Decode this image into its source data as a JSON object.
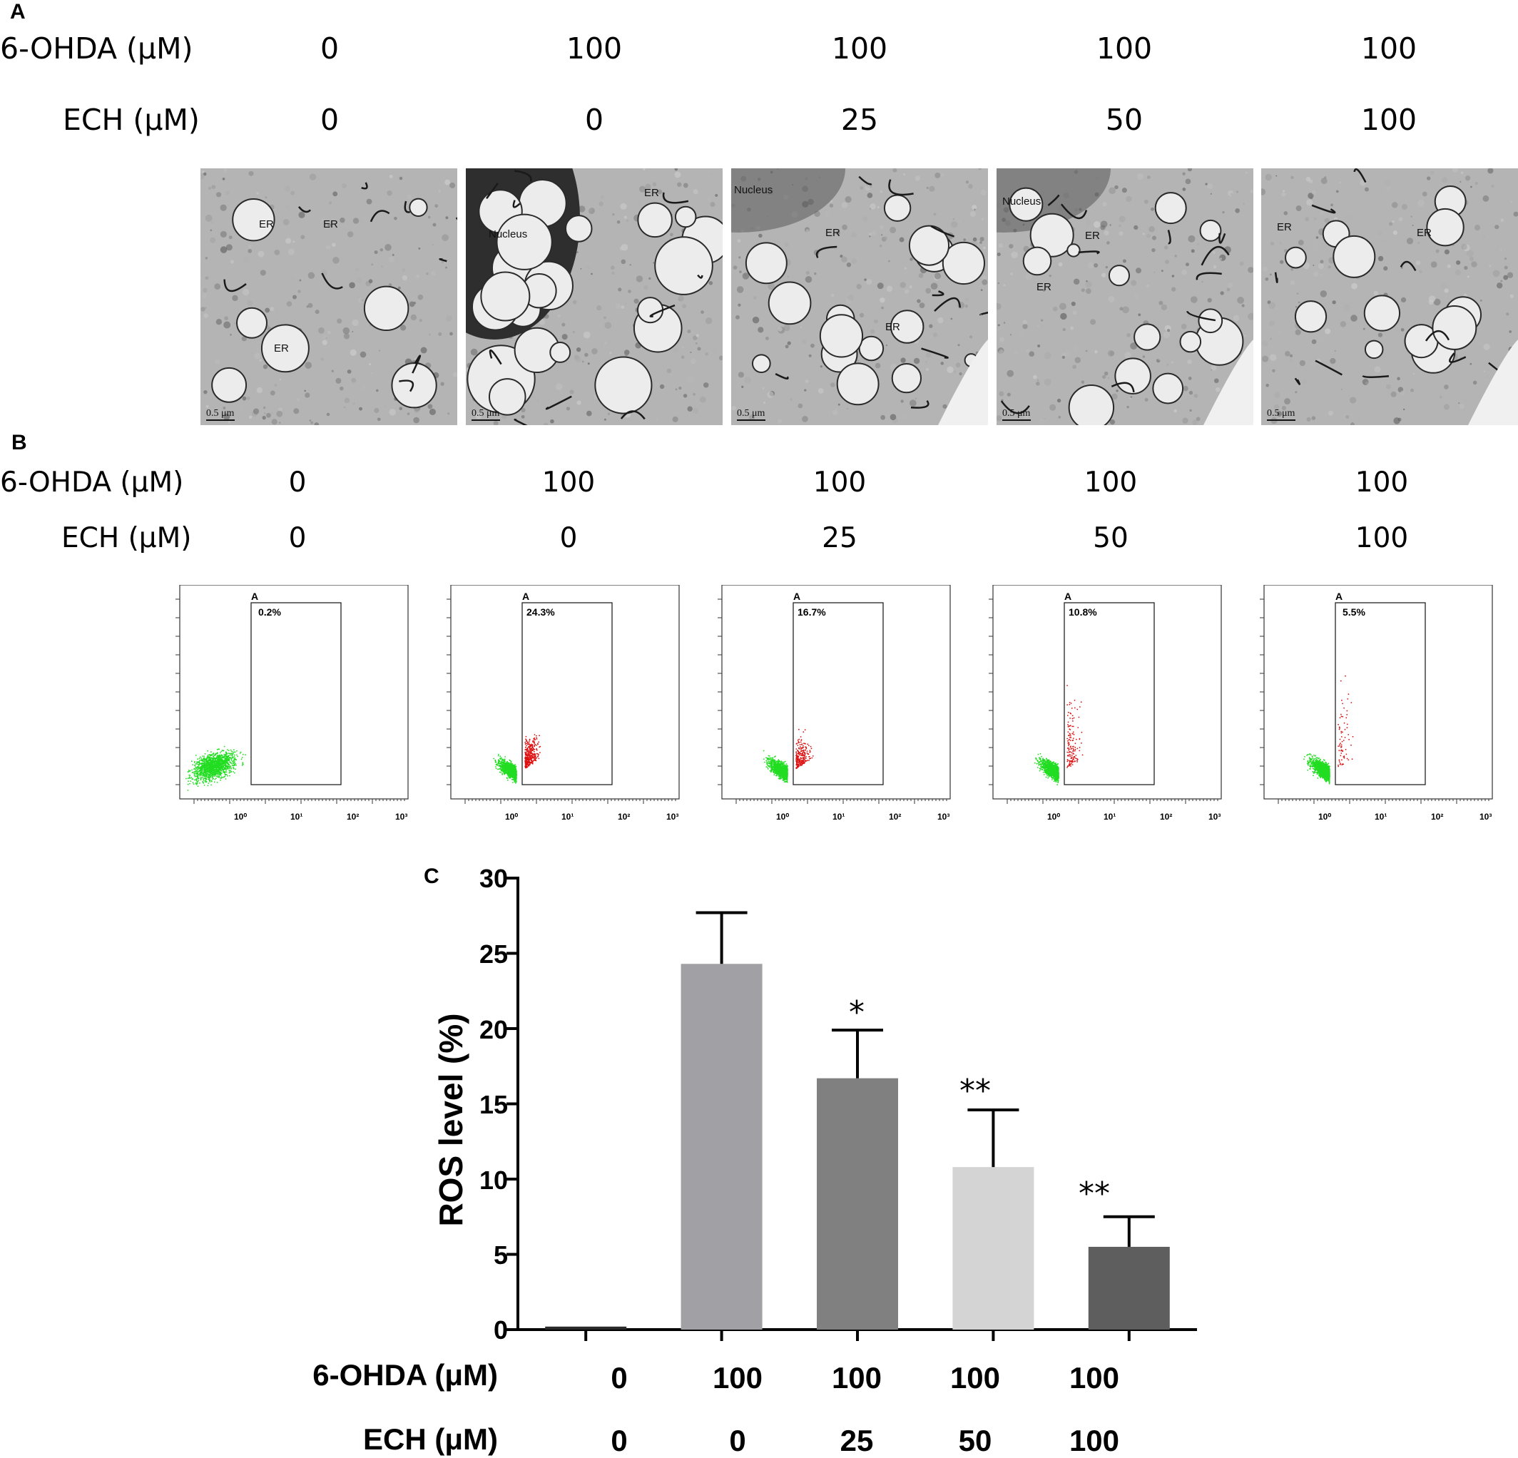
{
  "panelA": {
    "letter": "A",
    "row1_label": "6-OHDA (μM)",
    "row2_label": "ECH (μM)",
    "ohda": [
      "0",
      "100",
      "100",
      "100",
      "100"
    ],
    "ech": [
      "0",
      "0",
      "25",
      "50",
      "100"
    ],
    "images": [
      {
        "labels": [
          "ER",
          "ER",
          "ER"
        ],
        "scale": "0.5 μm"
      },
      {
        "labels": [
          "Nucleus",
          "ER"
        ],
        "scale": "0.5 μm"
      },
      {
        "labels": [
          "Nucleus",
          "ER",
          "ER"
        ],
        "scale": "0.5 μm"
      },
      {
        "labels": [
          "Nucleus",
          "ER",
          "ER"
        ],
        "scale": "0.5 μm"
      },
      {
        "labels": [
          "ER",
          "ER"
        ],
        "scale": "0.5 μm"
      }
    ]
  },
  "panelB": {
    "letter": "B",
    "row1_label": "6-OHDA (μM)",
    "row2_label": "ECH (μM)",
    "ohda": [
      "0",
      "100",
      "100",
      "100",
      "100"
    ],
    "ech": [
      "0",
      "0",
      "25",
      "50",
      "100"
    ],
    "gate_letter": "A",
    "gate_pct": [
      "0.2%",
      "24.3%",
      "16.7%",
      "10.8%",
      "5.5%"
    ],
    "x_ticks": [
      "10⁰",
      "10¹",
      "10²",
      "10³"
    ],
    "colors": {
      "negative": "#22dd22",
      "positive": "#dd1111"
    }
  },
  "panelC": {
    "letter": "C",
    "row1_label": "6-OHDA (μM)",
    "row2_label": "ECH (μM)",
    "significance": [
      "",
      "",
      "*",
      "**",
      "**"
    ]
  },
  "chart_data": {
    "type": "bar",
    "title": "",
    "xlabel": "",
    "ylabel": "ROS level (%)",
    "ylim": [
      0,
      30
    ],
    "yticks": [
      0,
      5,
      10,
      15,
      20,
      25,
      30
    ],
    "categories": [
      "0 / 0",
      "100 / 0",
      "100 / 25",
      "100 / 50",
      "100 / 100"
    ],
    "ohda": [
      "0",
      "100",
      "100",
      "100",
      "100"
    ],
    "ech": [
      "0",
      "0",
      "25",
      "50",
      "100"
    ],
    "values": [
      0.2,
      24.3,
      16.7,
      10.8,
      5.5
    ],
    "errors": [
      0,
      3.4,
      3.2,
      3.8,
      2.0
    ],
    "colors": [
      "#2a2a2a",
      "#a0a0a5",
      "#808080",
      "#d4d4d4",
      "#5e5e5e"
    ]
  }
}
